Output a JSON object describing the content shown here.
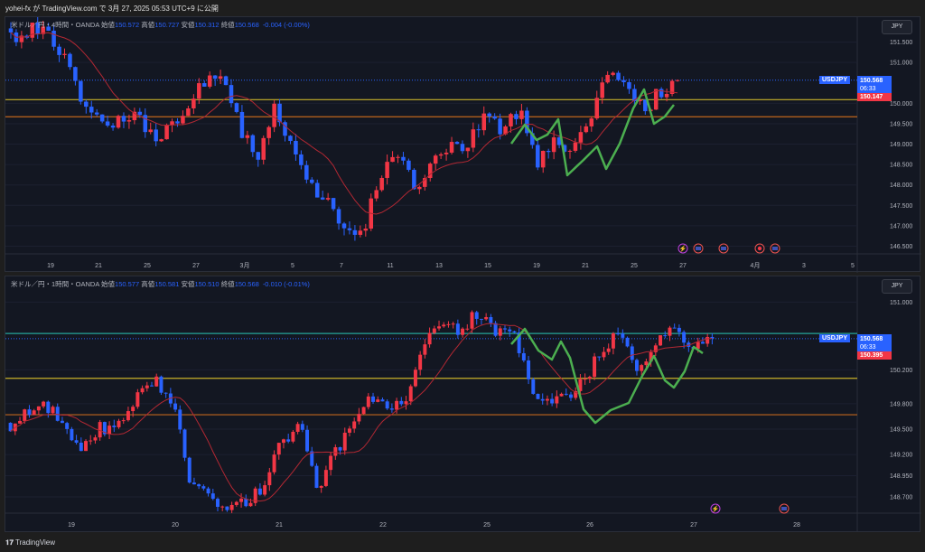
{
  "publish_line": "yohei-fx が TradingView.com で 3月 27, 2025 05:53 UTC+9 に公開",
  "footer_brand": "TradingView",
  "colors": {
    "up": "#f23645",
    "down": "#2962ff",
    "ma": "#b22833",
    "smooth": "#4caf50",
    "yellow": "#c9b22a",
    "orange": "#c0661c",
    "teal": "#26a69a"
  },
  "charts": [
    {
      "symbol": "米ドル／円・4時間・OANDA",
      "open_label": "始値",
      "open": "150.572",
      "high_label": "高値",
      "high": "150.727",
      "low_label": "安値",
      "low": "150.312",
      "close_label": "終値",
      "close": "150.568",
      "change": "-0.004 (-0.00%)",
      "currency": "JPY",
      "ticker": "USDJPY",
      "last_price": "150.568",
      "countdown": "06:33",
      "ma_value": "150.147",
      "price_ticks": [
        "151.500",
        "151.000",
        "150.000",
        "149.500",
        "149.000",
        "148.500",
        "148.000",
        "147.500",
        "147.000",
        "146.500"
      ],
      "date_ticks": [
        "19",
        "21",
        "25",
        "27",
        "3月",
        "5",
        "7",
        "11",
        "13",
        "15",
        "19",
        "21",
        "25",
        "27",
        "4月",
        "3",
        "5"
      ],
      "hlines": {
        "yellow": 150.09,
        "orange": 149.67
      },
      "chart_data": {
        "type": "candlestick",
        "ylim": [
          146.4,
          152.0
        ],
        "close_path": [
          151.6,
          151.8,
          151.9,
          151.2,
          150.0,
          149.5,
          149.6,
          149.8,
          149.2,
          149.4,
          150.0,
          150.5,
          150.8,
          149.5,
          148.6,
          150.0,
          149.0,
          148.0,
          147.6,
          147.0,
          146.8,
          148.2,
          148.8,
          148.0,
          148.5,
          149.0,
          149.0,
          149.7,
          149.4,
          149.9,
          148.5,
          149.0,
          148.8,
          149.5,
          150.9,
          150.5,
          149.8,
          150.3,
          150.57
        ]
      },
      "events": [
        "lightning",
        "us",
        "us",
        "jp",
        "us"
      ]
    },
    {
      "symbol": "米ドル／円・1時間・OANDA",
      "open_label": "始値",
      "open": "150.577",
      "high_label": "高値",
      "high": "150.581",
      "low_label": "安値",
      "low": "150.510",
      "close_label": "終値",
      "close": "150.568",
      "change": "-0.010 (-0.01%)",
      "currency": "JPY",
      "ticker": "USDJPY",
      "last_price": "150.568",
      "countdown": "06:33",
      "ma_value": "150.395",
      "price_ticks": [
        "151.000",
        "150.200",
        "149.800",
        "149.500",
        "149.200",
        "148.950",
        "148.700"
      ],
      "date_ticks": [
        "19",
        "20",
        "21",
        "22",
        "25",
        "26",
        "27",
        "28"
      ],
      "hlines": {
        "teal": 150.63,
        "yellow": 150.1,
        "orange": 149.67
      },
      "chart_data": {
        "type": "candlestick",
        "ylim": [
          148.55,
          151.25
        ],
        "close_path": [
          149.5,
          149.7,
          149.8,
          149.5,
          149.3,
          149.5,
          149.6,
          149.9,
          150.1,
          149.8,
          148.9,
          148.7,
          148.6,
          148.6,
          148.8,
          149.3,
          149.6,
          148.8,
          149.2,
          149.5,
          149.9,
          149.8,
          149.8,
          150.5,
          150.7,
          150.7,
          150.85,
          150.6,
          150.7,
          149.9,
          149.75,
          149.9,
          150.1,
          150.5,
          150.6,
          150.2,
          150.5,
          150.7,
          150.45,
          150.57
        ]
      },
      "events": [
        "lightning",
        "us"
      ]
    }
  ]
}
